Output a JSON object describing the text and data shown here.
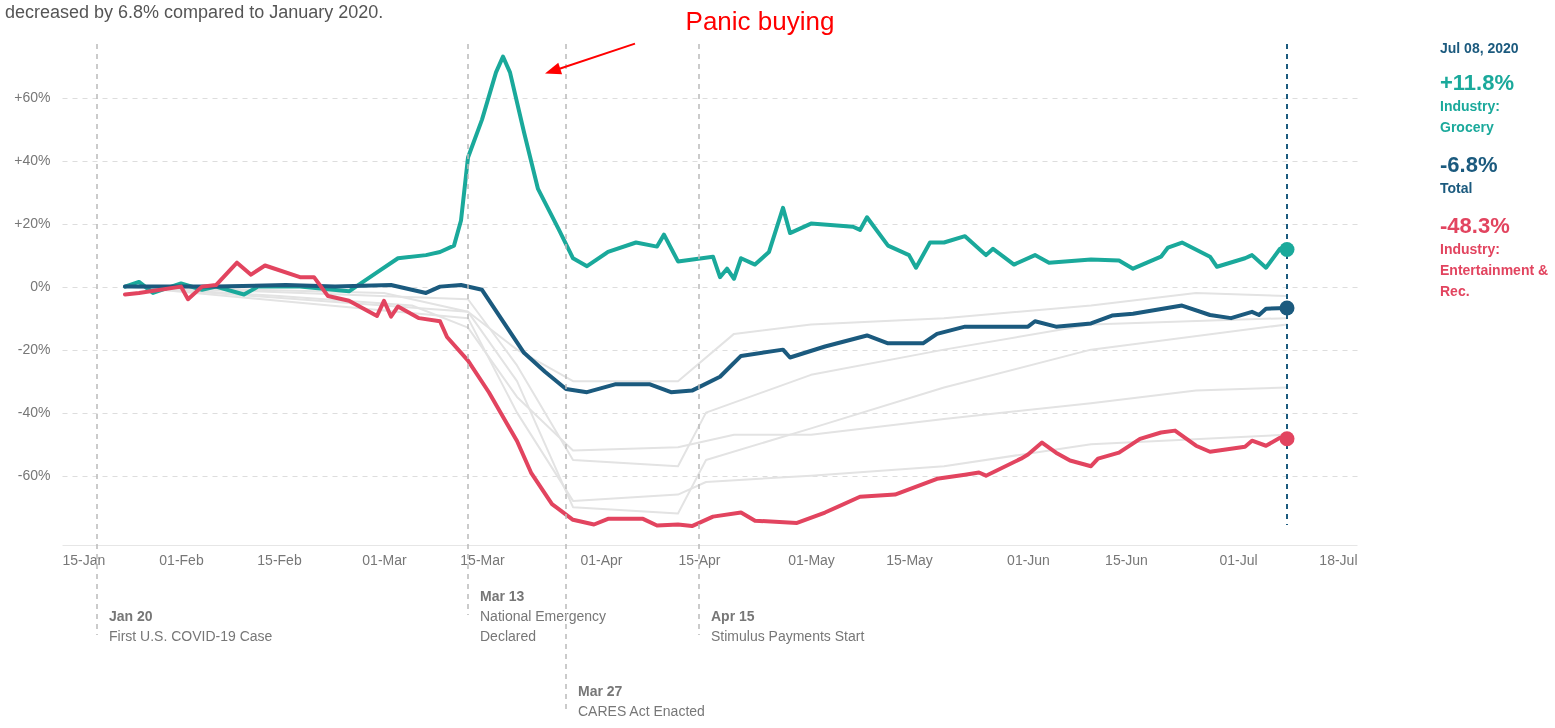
{
  "chart_data": {
    "type": "line",
    "subtitle": "decreased by 6.8% compared to January 2020.",
    "xlim": [
      "2020-01-15",
      "2020-07-18"
    ],
    "xticks": [
      {
        "value": "2020-01-15",
        "label": "15-Jan"
      },
      {
        "value": "2020-02-01",
        "label": "01-Feb"
      },
      {
        "value": "2020-02-15",
        "label": "15-Feb"
      },
      {
        "value": "2020-03-01",
        "label": "01-Mar"
      },
      {
        "value": "2020-03-15",
        "label": "15-Mar"
      },
      {
        "value": "2020-04-01",
        "label": "01-Apr"
      },
      {
        "value": "2020-04-15",
        "label": "15-Apr"
      },
      {
        "value": "2020-05-01",
        "label": "01-May"
      },
      {
        "value": "2020-05-15",
        "label": "15-May"
      },
      {
        "value": "2020-06-01",
        "label": "01-Jun"
      },
      {
        "value": "2020-06-15",
        "label": "15-Jun"
      },
      {
        "value": "2020-07-01",
        "label": "01-Jul"
      },
      {
        "value": "2020-07-18",
        "label": "18-Jul"
      }
    ],
    "ylim": [
      -82,
      77
    ],
    "yticks": [
      {
        "value": 60,
        "label": "+60%"
      },
      {
        "value": 40,
        "label": "+40%"
      },
      {
        "value": 20,
        "label": "+20%"
      },
      {
        "value": 0,
        "label": "0%"
      },
      {
        "value": -20,
        "label": "-20%"
      },
      {
        "value": -40,
        "label": "-40%"
      },
      {
        "value": -60,
        "label": "-60%"
      }
    ],
    "grid": "y",
    "legend": "right",
    "series": [
      {
        "color": "#e3e3e3",
        "x": [
          "2020-01-24",
          "2020-03-01",
          "2020-03-13",
          "2020-03-20",
          "2020-03-28",
          "2020-04-12",
          "2020-04-20",
          "2020-05-01",
          "2020-05-20",
          "2020-06-10",
          "2020-06-25",
          "2020-07-08"
        ],
        "values": [
          0,
          -2,
          -8,
          -20,
          -30,
          -30,
          -15,
          -12,
          -10,
          -6,
          -2,
          -3
        ]
      },
      {
        "color": "#e3e3e3",
        "x": [
          "2020-01-24",
          "2020-02-15",
          "2020-03-05",
          "2020-03-13",
          "2020-03-20",
          "2020-03-28",
          "2020-04-12",
          "2020-04-20",
          "2020-05-01",
          "2020-05-20",
          "2020-06-10",
          "2020-06-25",
          "2020-07-08"
        ],
        "values": [
          0,
          -3,
          -6,
          -13,
          -35,
          -52,
          -51,
          -47,
          -47,
          -42,
          -37,
          -33,
          -32
        ]
      },
      {
        "color": "#e3e3e3",
        "x": [
          "2020-01-24",
          "2020-03-13",
          "2020-03-20",
          "2020-03-28",
          "2020-04-12",
          "2020-04-16",
          "2020-05-01",
          "2020-05-20",
          "2020-06-10",
          "2020-07-08"
        ],
        "values": [
          0,
          -4,
          -25,
          -55,
          -57,
          -40,
          -28,
          -20,
          -12,
          -10
        ]
      },
      {
        "color": "#e3e3e3",
        "x": [
          "2020-01-24",
          "2020-03-13",
          "2020-03-20",
          "2020-03-28",
          "2020-04-12",
          "2020-04-16",
          "2020-05-01",
          "2020-05-20",
          "2020-06-10",
          "2020-07-08"
        ],
        "values": [
          0,
          -10,
          -40,
          -68,
          -66,
          -62,
          -60,
          -57,
          -50,
          -47
        ]
      },
      {
        "color": "#e3e3e3",
        "x": [
          "2020-01-24",
          "2020-03-13",
          "2020-03-20",
          "2020-03-28",
          "2020-04-12",
          "2020-04-16",
          "2020-05-01",
          "2020-05-20",
          "2020-06-10",
          "2020-07-08"
        ],
        "values": [
          0,
          -8,
          -30,
          -70,
          -72,
          -55,
          -45,
          -32,
          -20,
          -12
        ]
      },
      {
        "name": "Industry: Grocery",
        "color": "#1aa99b",
        "x": [
          "2020-01-24",
          "2020-01-26",
          "2020-01-28",
          "2020-02-01",
          "2020-02-04",
          "2020-02-06",
          "2020-02-10",
          "2020-02-12",
          "2020-02-18",
          "2020-02-25",
          "2020-02-29",
          "2020-03-03",
          "2020-03-07",
          "2020-03-09",
          "2020-03-11",
          "2020-03-12",
          "2020-03-13",
          "2020-03-15",
          "2020-03-17",
          "2020-03-18",
          "2020-03-19",
          "2020-03-21",
          "2020-03-23",
          "2020-03-26",
          "2020-03-28",
          "2020-03-30",
          "2020-04-02",
          "2020-04-06",
          "2020-04-09",
          "2020-04-10",
          "2020-04-12",
          "2020-04-17",
          "2020-04-18",
          "2020-04-19",
          "2020-04-20",
          "2020-04-21",
          "2020-04-23",
          "2020-04-25",
          "2020-04-27",
          "2020-04-28",
          "2020-05-01",
          "2020-05-07",
          "2020-05-08",
          "2020-05-09",
          "2020-05-12",
          "2020-05-15",
          "2020-05-16",
          "2020-05-18",
          "2020-05-20",
          "2020-05-23",
          "2020-05-26",
          "2020-05-27",
          "2020-05-30",
          "2020-06-02",
          "2020-06-04",
          "2020-06-10",
          "2020-06-14",
          "2020-06-16",
          "2020-06-20",
          "2020-06-21",
          "2020-06-23",
          "2020-06-27",
          "2020-06-28",
          "2020-07-02",
          "2020-07-03",
          "2020-07-05",
          "2020-07-07",
          "2020-07-08"
        ],
        "values": [
          0,
          1.5,
          -2,
          1,
          -1,
          0,
          -2.5,
          0,
          0,
          -1.5,
          4.5,
          9,
          10,
          11,
          13,
          21,
          41,
          53,
          68,
          73,
          68,
          49,
          31,
          18,
          9,
          6.5,
          11,
          14,
          12.7,
          16.5,
          8,
          9.5,
          3,
          5.7,
          2.5,
          9,
          7,
          11,
          25,
          17,
          20,
          19,
          18,
          22,
          13,
          10,
          6,
          14,
          14,
          16,
          10,
          12,
          7,
          10,
          7.6,
          8.6,
          8.3,
          5.7,
          9.5,
          12.4,
          14,
          9.5,
          6.3,
          9,
          10,
          6,
          12,
          11.8
        ]
      },
      {
        "name": "Total",
        "color": "#1b5a7e",
        "x": [
          "2020-01-24",
          "2020-02-06",
          "2020-02-16",
          "2020-02-23",
          "2020-03-02",
          "2020-03-07",
          "2020-03-09",
          "2020-03-12",
          "2020-03-15",
          "2020-03-18",
          "2020-03-21",
          "2020-03-24",
          "2020-03-27",
          "2020-03-30",
          "2020-04-03",
          "2020-04-08",
          "2020-04-11",
          "2020-04-14",
          "2020-04-18",
          "2020-04-21",
          "2020-04-27",
          "2020-04-28",
          "2020-05-03",
          "2020-05-09",
          "2020-05-12",
          "2020-05-17",
          "2020-05-19",
          "2020-05-23",
          "2020-06-01",
          "2020-06-02",
          "2020-06-05",
          "2020-06-10",
          "2020-06-13",
          "2020-06-16",
          "2020-06-23",
          "2020-06-27",
          "2020-06-30",
          "2020-07-03",
          "2020-07-04",
          "2020-07-05",
          "2020-07-08"
        ],
        "values": [
          0,
          0,
          0.5,
          0,
          0.5,
          -2,
          0,
          0.5,
          -1,
          -11,
          -21,
          -27,
          -32.5,
          -33.5,
          -31,
          -31,
          -33.5,
          -33,
          -28.6,
          -22,
          -20,
          -22.5,
          -19,
          -15.5,
          -18,
          -18,
          -15,
          -12.7,
          -12.7,
          -11,
          -12.7,
          -11.7,
          -9.2,
          -8.6,
          -6,
          -9,
          -10,
          -8,
          -9,
          -7,
          -6.8
        ]
      },
      {
        "name": "Industry: Entertainment & Rec.",
        "color": "#e2445f",
        "x": [
          "2020-01-24",
          "2020-01-26",
          "2020-02-01",
          "2020-02-02",
          "2020-02-04",
          "2020-02-06",
          "2020-02-09",
          "2020-02-11",
          "2020-02-13",
          "2020-02-18",
          "2020-02-20",
          "2020-02-22",
          "2020-02-25",
          "2020-02-29",
          "2020-03-01",
          "2020-03-02",
          "2020-03-03",
          "2020-03-06",
          "2020-03-09",
          "2020-03-10",
          "2020-03-13",
          "2020-03-16",
          "2020-03-20",
          "2020-03-22",
          "2020-03-25",
          "2020-03-28",
          "2020-03-31",
          "2020-04-02",
          "2020-04-07",
          "2020-04-09",
          "2020-04-12",
          "2020-04-14",
          "2020-04-17",
          "2020-04-21",
          "2020-04-23",
          "2020-04-29",
          "2020-05-03",
          "2020-05-08",
          "2020-05-13",
          "2020-05-19",
          "2020-05-23",
          "2020-05-25",
          "2020-05-26",
          "2020-05-31",
          "2020-06-01",
          "2020-06-03",
          "2020-06-05",
          "2020-06-07",
          "2020-06-10",
          "2020-06-11",
          "2020-06-14",
          "2020-06-17",
          "2020-06-20",
          "2020-06-22",
          "2020-06-25",
          "2020-06-27",
          "2020-07-02",
          "2020-07-03",
          "2020-07-05",
          "2020-07-07",
          "2020-07-08"
        ],
        "values": [
          -2.5,
          -2,
          0,
          -4,
          0,
          0.5,
          7.6,
          3.8,
          6.7,
          3,
          3,
          -3,
          -4.5,
          -9.3,
          -4.5,
          -9.5,
          -6.3,
          -10,
          -11,
          -16,
          -23.5,
          -33.6,
          -49,
          -59,
          -69,
          -74,
          -75.5,
          -73.7,
          -73.7,
          -75.8,
          -75.5,
          -76,
          -73,
          -71.7,
          -74.3,
          -75,
          -71.7,
          -66.7,
          -66,
          -61,
          -59.7,
          -59,
          -60,
          -54.6,
          -53.3,
          -49.5,
          -52.7,
          -55.2,
          -57,
          -54.6,
          -52.7,
          -48.3,
          -46.3,
          -45.7,
          -50.5,
          -52.4,
          -50.8,
          -48.9,
          -50.5,
          -48,
          -48.3
        ]
      }
    ],
    "ref_lines": [
      {
        "axis": "x",
        "value": "2020-01-20",
        "label": "Jan 20\nFirst U.S. COVID-19 Case",
        "color": "#bbbbbb",
        "line_style": "dashed"
      },
      {
        "axis": "x",
        "value": "2020-03-13",
        "label": "Mar 13\nNational Emergency\nDeclared",
        "color": "#bbbbbb",
        "line_style": "dashed"
      },
      {
        "axis": "x",
        "value": "2020-03-27",
        "label": "Mar 27\nCARES Act Enacted",
        "color": "#bbbbbb",
        "line_style": "dashed"
      },
      {
        "axis": "x",
        "value": "2020-04-15",
        "label": "Apr 15\nStimulus Payments Start",
        "color": "#bbbbbb",
        "line_style": "dashed"
      },
      {
        "axis": "x",
        "value": "2020-07-08",
        "label": "Jul 08, 2020",
        "color": "#1b5a7e",
        "line_style": "dashed"
      }
    ],
    "annotations": [
      "Panic buying",
      "+11.8%",
      "-6.8%",
      "-48.3%"
    ]
  }
}
